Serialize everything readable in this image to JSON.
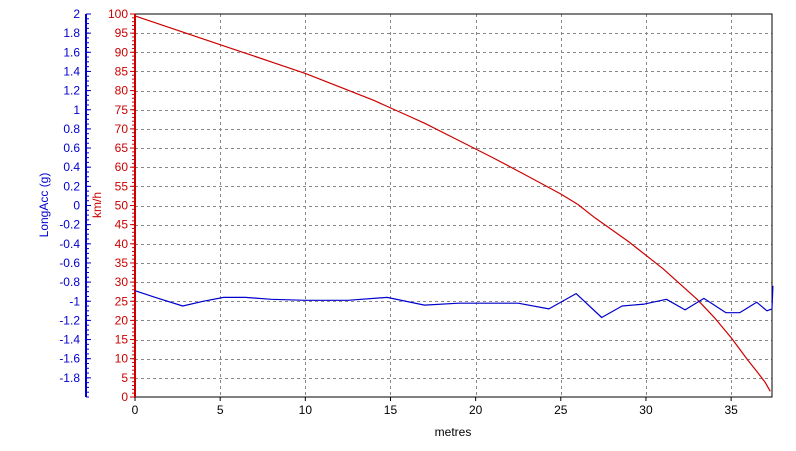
{
  "chart_data": {
    "type": "line",
    "xlabel": "metres",
    "xlim": [
      0,
      37.4
    ],
    "x_ticks": [
      0,
      5,
      10,
      15,
      20,
      25,
      30,
      35
    ],
    "grid": true,
    "y_axes": [
      {
        "id": "longacc",
        "label": "LongAcc (g)",
        "color": "#0000cc",
        "ylim": [
          -2,
          2
        ],
        "ticks": [
          2,
          1.8,
          1.6,
          1.4,
          1.2,
          1,
          0.8,
          0.6,
          0.4,
          0.2,
          0,
          -0.2,
          -0.4,
          -0.6,
          -0.8,
          -1,
          -1.2,
          -1.4,
          -1.6,
          -1.8
        ]
      },
      {
        "id": "speed",
        "label": "km/h",
        "color": "#cc0000",
        "ylim": [
          0,
          100
        ],
        "ticks": [
          100,
          95,
          90,
          85,
          80,
          75,
          70,
          65,
          60,
          55,
          50,
          45,
          40,
          35,
          30,
          25,
          20,
          15,
          10,
          5,
          0
        ]
      }
    ],
    "series": [
      {
        "axis": "speed",
        "color": "#cc0000",
        "x": [
          0,
          2,
          4,
          6,
          8,
          10,
          12,
          14,
          16,
          17,
          19,
          21,
          23,
          25,
          26,
          27,
          29,
          31,
          33,
          34,
          35,
          36,
          36.5,
          37,
          37.3
        ],
        "y": [
          99.5,
          96.5,
          93.5,
          90.5,
          87.5,
          84.5,
          81,
          77.5,
          73.5,
          71.5,
          67,
          62.5,
          57.8,
          53,
          50.3,
          46.8,
          40.5,
          33.5,
          25.5,
          20.8,
          15.5,
          9.5,
          6.7,
          3.8,
          1.5
        ]
      },
      {
        "axis": "longacc",
        "color": "#0000cc",
        "x": [
          0,
          1.2,
          2.8,
          4,
          5.2,
          6.5,
          8,
          10,
          12.5,
          14.8,
          17,
          19,
          21,
          22.5,
          24.3,
          25.9,
          27.4,
          28.6,
          29.9,
          31.2,
          32.3,
          33.4,
          34.7,
          35.5,
          36.5,
          37.1,
          37.4,
          37.45
        ],
        "y": [
          -0.89,
          -0.96,
          -1.05,
          -1.0,
          -0.96,
          -0.96,
          -0.98,
          -0.99,
          -0.99,
          -0.96,
          -1.04,
          -1.02,
          -1.02,
          -1.02,
          -1.08,
          -0.92,
          -1.17,
          -1.05,
          -1.03,
          -0.98,
          -1.09,
          -0.97,
          -1.12,
          -1.12,
          -1.01,
          -1.1,
          -1.08,
          -0.84
        ]
      }
    ]
  }
}
